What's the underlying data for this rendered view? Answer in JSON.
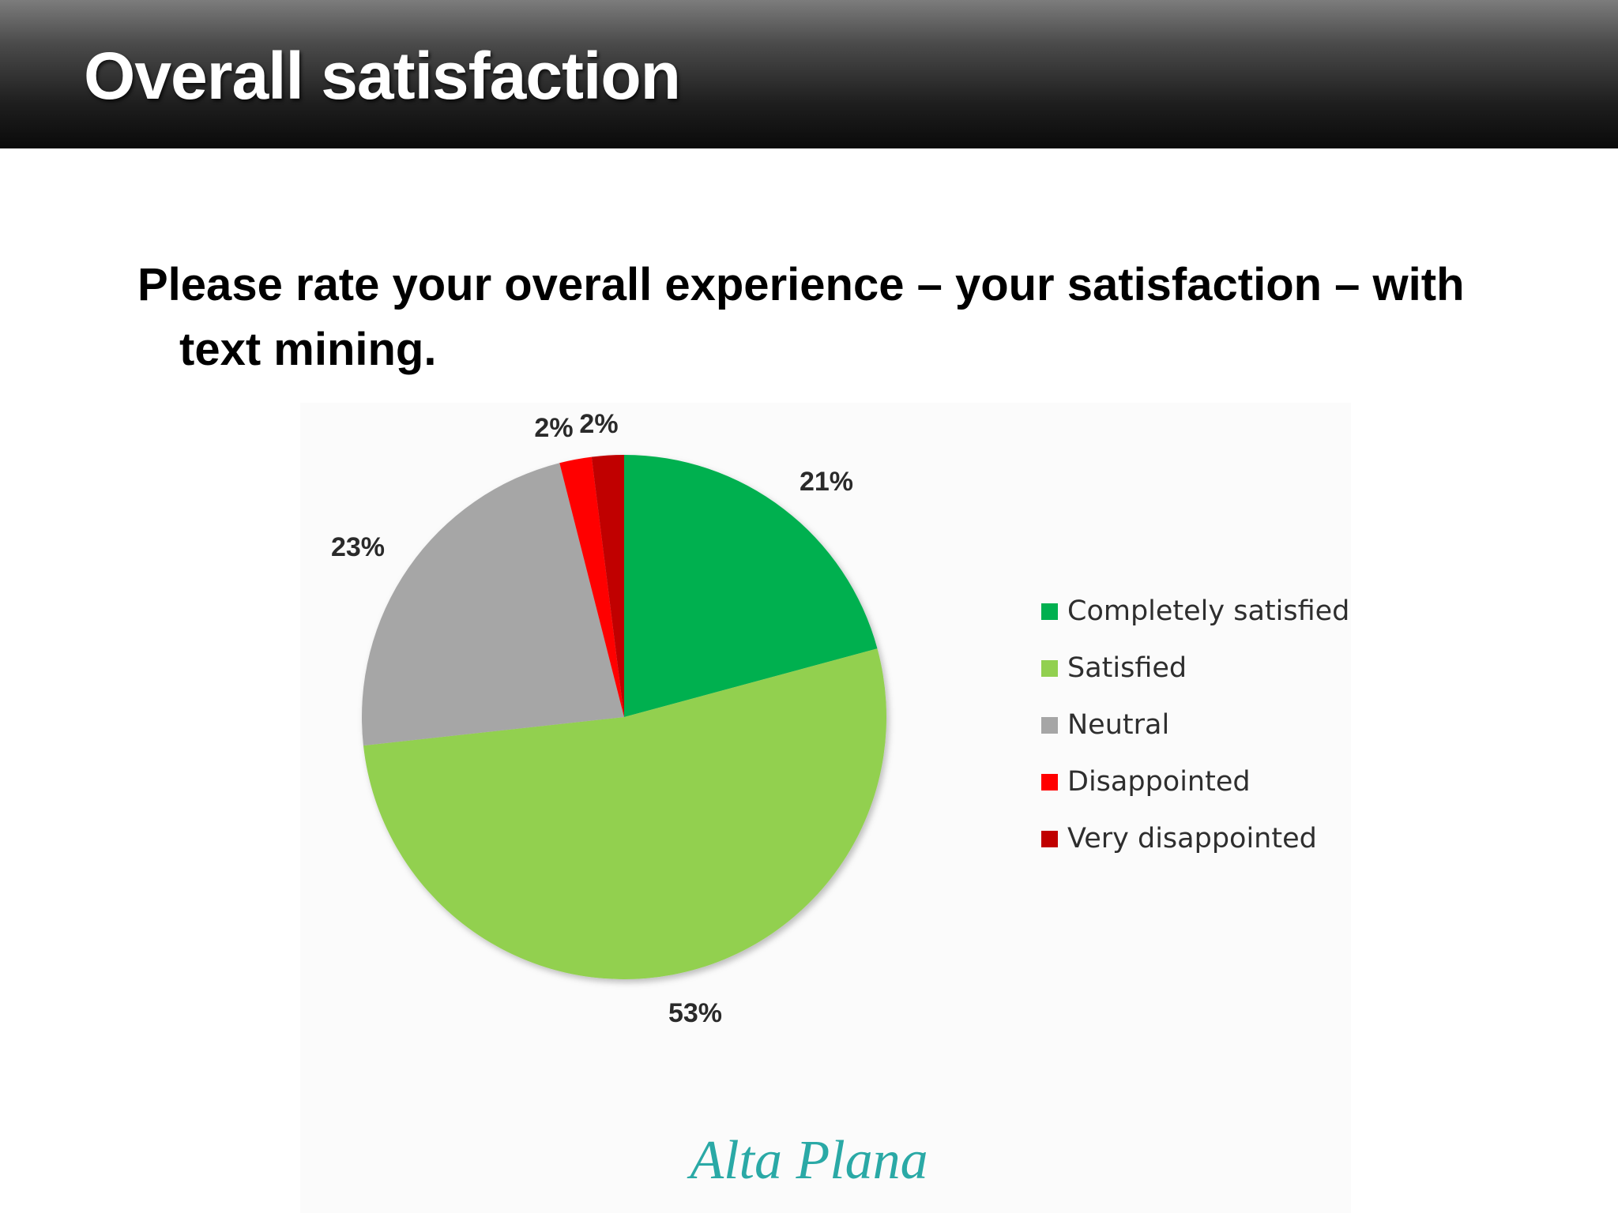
{
  "slide": {
    "title": "Overall satisfaction",
    "question": "Please rate your overall experience – your satisfaction – with text mining.",
    "logo_text": "Alta Plana"
  },
  "chart_data": {
    "type": "pie",
    "categories": [
      "Completely satisfied",
      "Satisfied",
      "Neutral",
      "Disappointed",
      "Very disappointed"
    ],
    "values": [
      21,
      53,
      23,
      2,
      2
    ],
    "labels": [
      "21%",
      "53%",
      "23%",
      "2%",
      "2%"
    ],
    "colors": [
      "#00b050",
      "#92d050",
      "#a6a6a6",
      "#ff0000",
      "#c00000"
    ],
    "start": "12 o'clock",
    "direction": "clockwise",
    "legend_position": "right"
  }
}
